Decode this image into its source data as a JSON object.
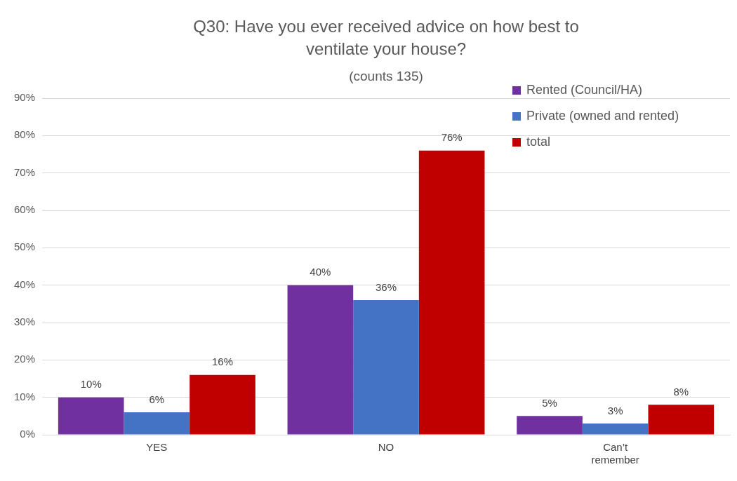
{
  "chart_data": {
    "type": "bar",
    "title": "Q30: Have you ever received advice on how best to ventilate your house?",
    "subtitle": "(counts 135)",
    "categories": [
      "YES",
      "NO",
      "Can’t remember"
    ],
    "series": [
      {
        "name": "Rented (Council/HA)",
        "color": "#7030a0",
        "values": [
          10,
          40,
          5
        ],
        "value_labels": [
          "10%",
          "40%",
          "5%"
        ]
      },
      {
        "name": "Private (owned and rented)",
        "color": "#4472c4",
        "values": [
          6,
          36,
          3
        ],
        "value_labels": [
          "6%",
          "36%",
          "3%"
        ]
      },
      {
        "name": "total",
        "color": "#c00000",
        "values": [
          16,
          76,
          8
        ],
        "value_labels": [
          "16%",
          "76%",
          "8%"
        ]
      }
    ],
    "ylim": [
      0,
      90
    ],
    "yticks": [
      {
        "value": 0,
        "label": "0%"
      },
      {
        "value": 10,
        "label": "10%"
      },
      {
        "value": 20,
        "label": "20%"
      },
      {
        "value": 30,
        "label": "30%"
      },
      {
        "value": 40,
        "label": "40%"
      },
      {
        "value": 50,
        "label": "50%"
      },
      {
        "value": 60,
        "label": "60%"
      },
      {
        "value": 70,
        "label": "70%"
      },
      {
        "value": 80,
        "label": "80%"
      },
      {
        "value": 90,
        "label": "90%"
      }
    ],
    "grid": "y",
    "legend": "top right"
  }
}
